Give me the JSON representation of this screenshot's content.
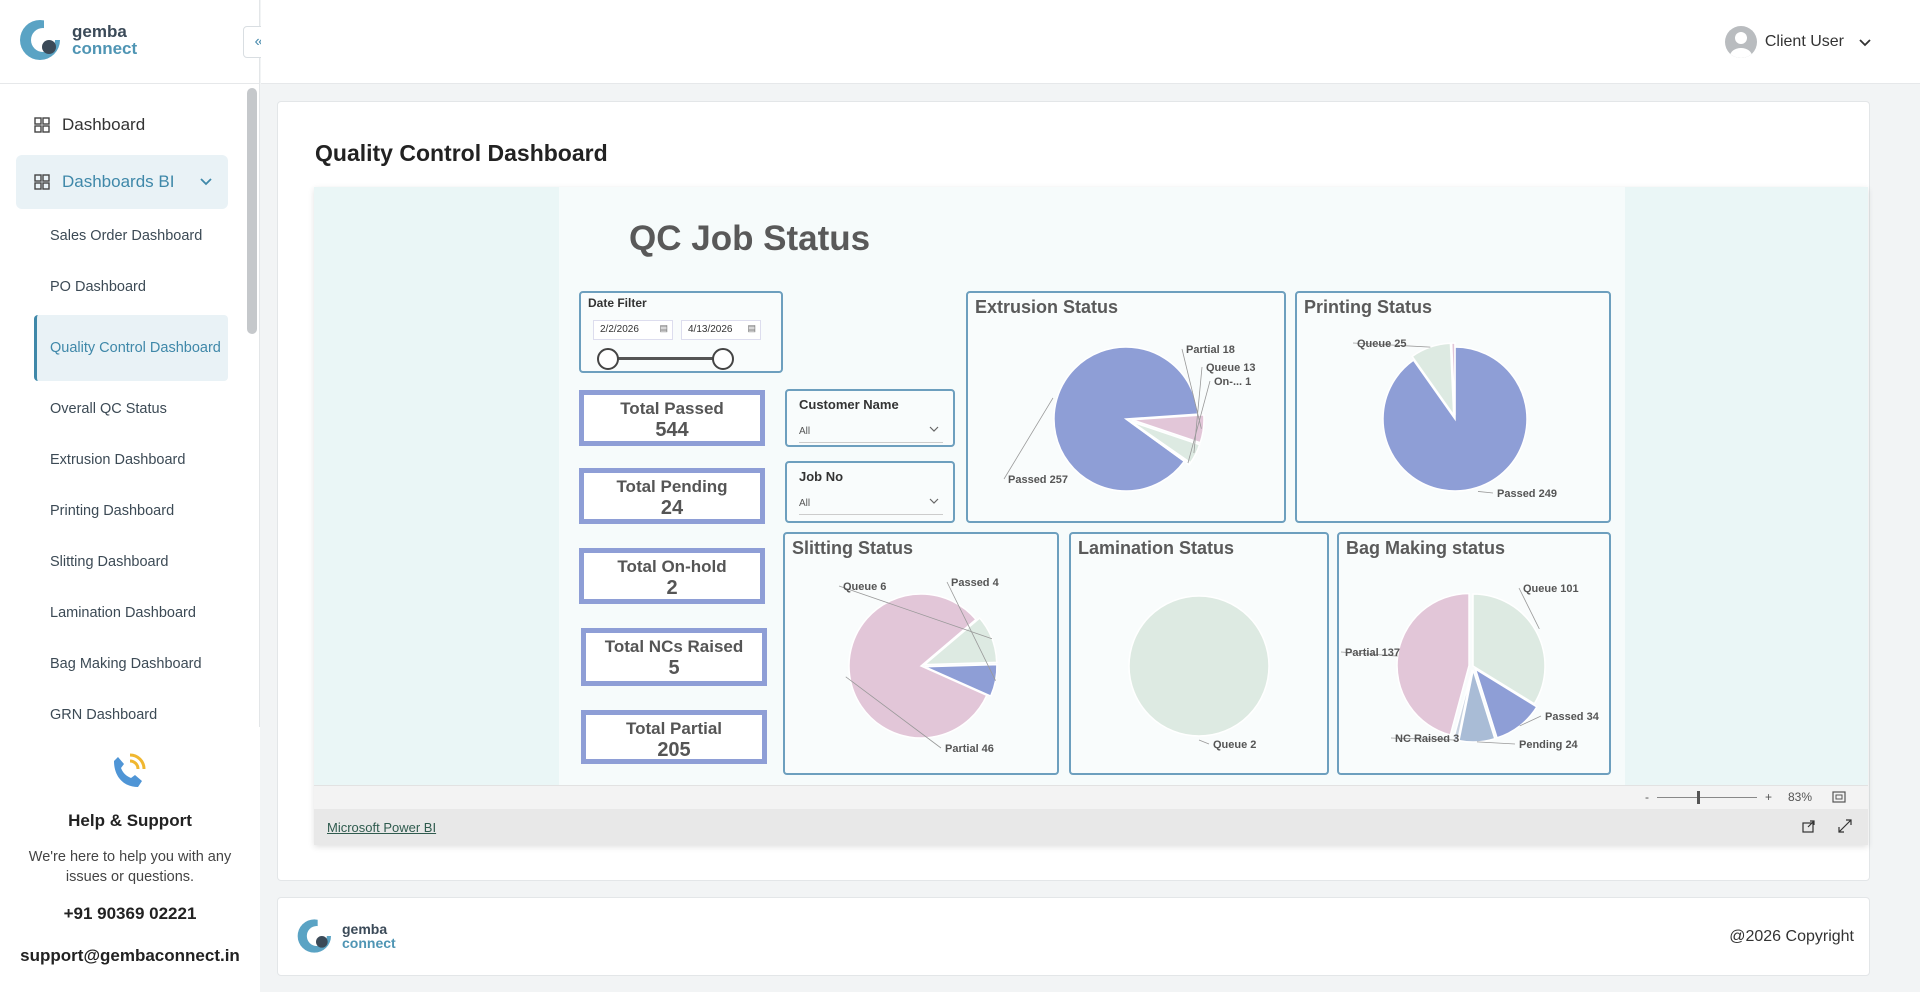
{
  "brand": {
    "line1": "gemba",
    "line2": "connect"
  },
  "header": {
    "user_name": "Client User"
  },
  "sidebar": {
    "items": [
      {
        "label": "Dashboard"
      },
      {
        "label": "Dashboards BI"
      }
    ],
    "sub_items": [
      {
        "label": "Sales Order Dashboard"
      },
      {
        "label": "PO Dashboard"
      },
      {
        "label": "Quality Control Dashboard"
      },
      {
        "label": "Overall QC Status"
      },
      {
        "label": "Extrusion Dashboard"
      },
      {
        "label": "Printing Dashboard"
      },
      {
        "label": "Slitting Dashboard"
      },
      {
        "label": "Lamination Dashboard"
      },
      {
        "label": "Bag Making Dashboard"
      },
      {
        "label": "GRN Dashboard"
      }
    ]
  },
  "help": {
    "title": "Help & Support",
    "text": "We're here to help you with any issues or questions.",
    "phone": "+91 90369 02221",
    "email": "support@gembaconnect.in"
  },
  "page": {
    "title": "Quality Control Dashboard"
  },
  "report": {
    "title": "QC Job Status",
    "date_filter": {
      "label": "Date Filter",
      "start": "2/2/2026",
      "end": "4/13/2026"
    },
    "kpis": [
      {
        "label": "Total Passed",
        "value": "544"
      },
      {
        "label": "Total Pending",
        "value": "24"
      },
      {
        "label": "Total On-hold",
        "value": "2"
      },
      {
        "label": "Total NCs Raised",
        "value": "5"
      },
      {
        "label": "Total Partial",
        "value": "205"
      }
    ],
    "slicers": [
      {
        "label": "Customer Name",
        "value": "All"
      },
      {
        "label": "Job No",
        "value": "All"
      }
    ],
    "colors": {
      "passed": "#8e9ed6",
      "partial": "#e2c6d8",
      "queue": "#ddeae2",
      "onhold": "#a8e2e4",
      "pending": "#a9bcd6",
      "nc": "#c9d3e0"
    }
  },
  "chart_data": [
    {
      "type": "pie",
      "title": "Extrusion Status",
      "slices": [
        {
          "label": "Passed 257",
          "value": 257
        },
        {
          "label": "Partial 18",
          "value": 18
        },
        {
          "label": "Queue 13",
          "value": 13
        },
        {
          "label": "On-... 1",
          "value": 1
        }
      ]
    },
    {
      "type": "pie",
      "title": "Printing Status",
      "slices": [
        {
          "label": "Passed 249",
          "value": 249
        },
        {
          "label": "Queue 25",
          "value": 25
        },
        {
          "label": "",
          "value": 2
        }
      ]
    },
    {
      "type": "pie",
      "title": "Slitting Status",
      "slices": [
        {
          "label": "Partial 46",
          "value": 46
        },
        {
          "label": "Queue 6",
          "value": 6
        },
        {
          "label": "Passed 4",
          "value": 4
        }
      ]
    },
    {
      "type": "pie",
      "title": "Lamination Status",
      "slices": [
        {
          "label": "Queue 2",
          "value": 2
        }
      ]
    },
    {
      "type": "pie",
      "title": "Bag Making status",
      "slices": [
        {
          "label": "Queue 101",
          "value": 101
        },
        {
          "label": "Passed 34",
          "value": 34
        },
        {
          "label": "Pending 24",
          "value": 24
        },
        {
          "label": "NC Raised 3",
          "value": 3
        },
        {
          "label": "Partial 137",
          "value": 137
        }
      ]
    }
  ],
  "powerbi": {
    "zoom": "83%",
    "link": "Microsoft Power BI"
  },
  "footer": {
    "copyright": "@2026 Copyright"
  }
}
